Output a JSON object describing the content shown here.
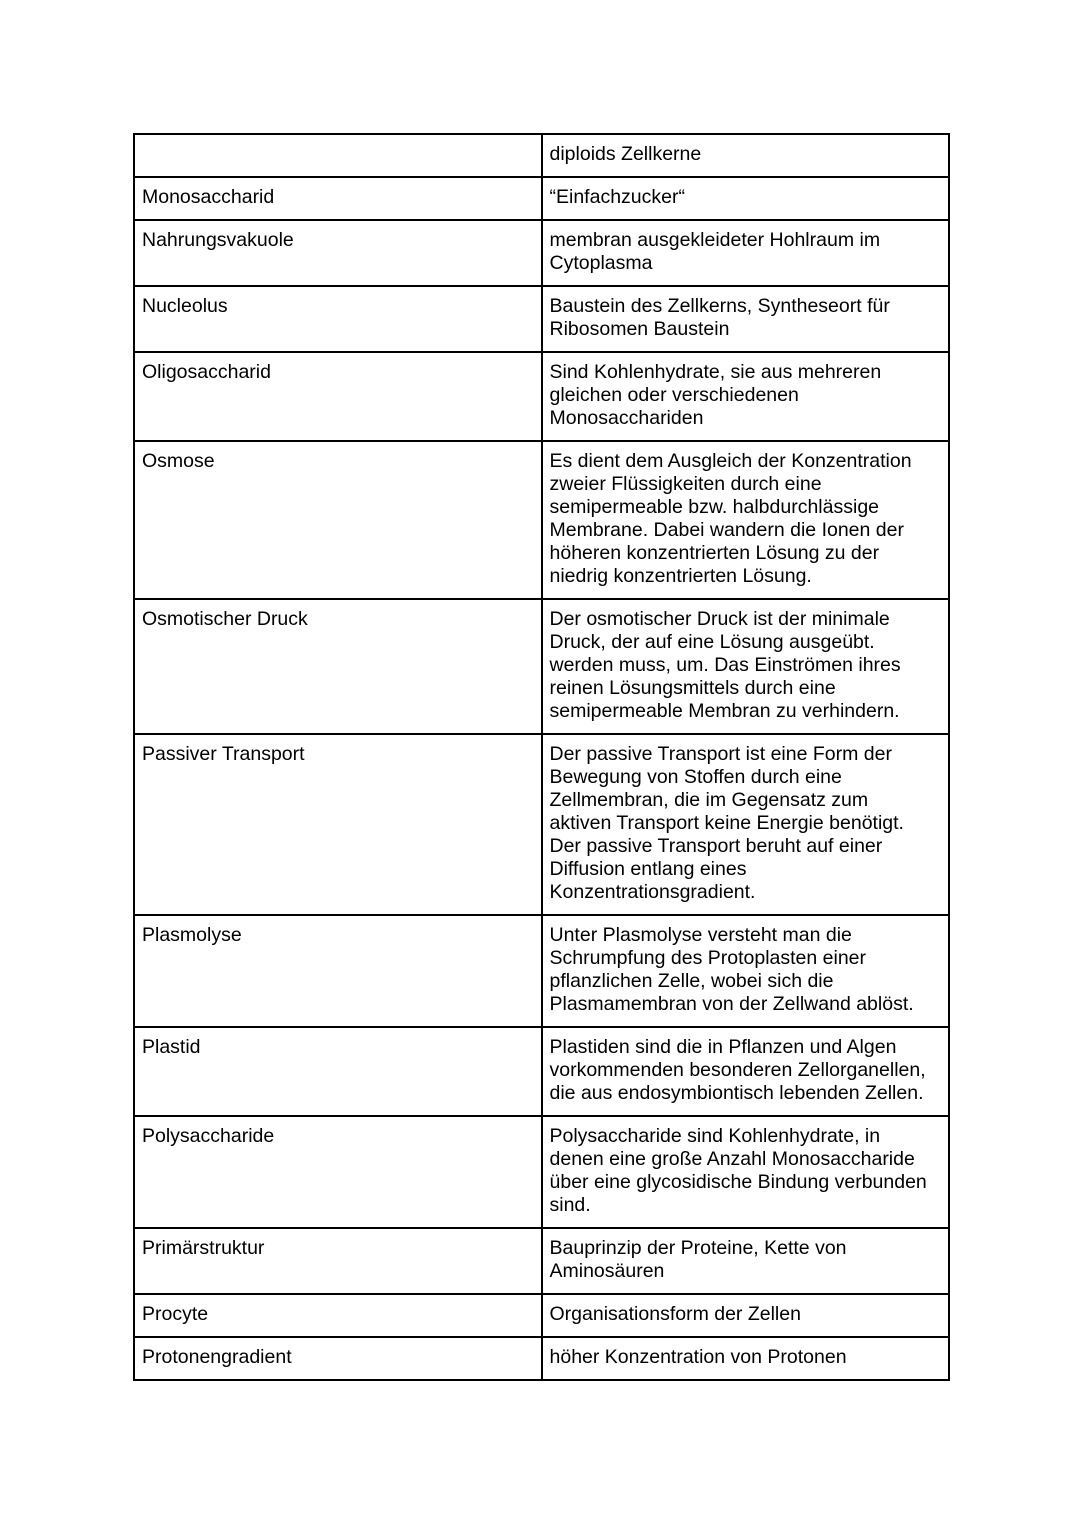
{
  "page": {
    "background_color": "#ffffff",
    "text_color": "#000000",
    "border_color": "#000000"
  },
  "glossary": {
    "columns": [
      "term",
      "definition"
    ],
    "rows": [
      {
        "term": "",
        "definition": "diploids Zellkerne"
      },
      {
        "term": "Monosaccharid",
        "definition": "“Einfachzucker“"
      },
      {
        "term": "Nahrungsvakuole",
        "definition": "membran ausgekleideter Hohlraum im\nCytoplasma"
      },
      {
        "term": "Nucleolus",
        "definition": "Baustein des Zellkerns, Syntheseort für\nRibosomen Baustein"
      },
      {
        "term": "Oligosaccharid",
        "definition": "Sind Kohlenhydrate, sie aus mehreren\ngleichen oder verschiedenen\nMonosacchariden"
      },
      {
        "term": "Osmose",
        "definition": "Es dient dem Ausgleich der Konzentration\nzweier Flüssigkeiten durch eine\nsemipermeable bzw. halbdurchlässige\nMembrane. Dabei wandern die Ionen der\nhöheren konzentrierten Lösung zu der\nniedrig konzentrierten Lösung."
      },
      {
        "term": "Osmotischer Druck",
        "definition": "Der osmotischer Druck ist der minimale\nDruck, der auf eine Lösung ausgeübt.\nwerden muss, um. Das Einströmen ihres\nreinen Lösungsmittels durch eine\nsemipermeable Membran zu verhindern."
      },
      {
        "term": "Passiver Transport",
        "definition": "Der passive Transport ist eine Form der\nBewegung von Stoffen durch eine\nZellmembran, die im Gegensatz zum\naktiven Transport keine Energie benötigt.\nDer passive Transport beruht auf einer\nDiffusion entlang eines\nKonzentrationsgradient."
      },
      {
        "term": "Plasmolyse",
        "definition": "Unter Plasmolyse versteht man die\nSchrumpfung des Protoplasten einer\npflanzlichen Zelle, wobei sich die\nPlasmamembran von der Zellwand ablöst."
      },
      {
        "term": "Plastid",
        "definition": "Plastiden sind die in Pflanzen und Algen\nvorkommenden besonderen Zellorganellen,\ndie aus endosymbiontisch lebenden Zellen."
      },
      {
        "term": "Polysaccharide",
        "definition": "Polysaccharide sind Kohlenhydrate, in\ndenen eine große Anzahl Monosaccharide\nüber eine glycosidische Bindung verbunden\nsind."
      },
      {
        "term": "Primärstruktur",
        "definition": "Bauprinzip der Proteine, Kette von\nAminosäuren"
      },
      {
        "term": "Procyte",
        "definition": "Organisationsform der Zellen"
      },
      {
        "term": "Protonengradient",
        "definition": "höher Konzentration von Protonen"
      }
    ]
  }
}
